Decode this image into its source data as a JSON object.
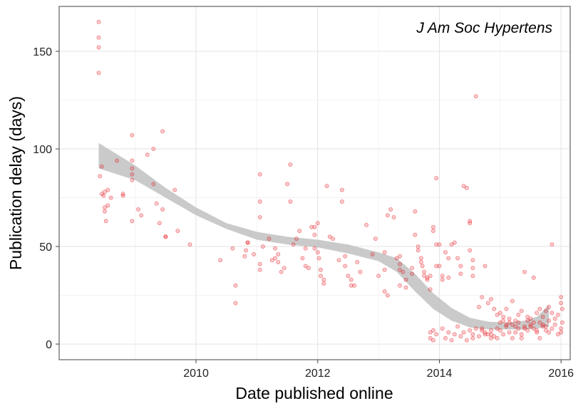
{
  "chart_data": {
    "type": "scatter",
    "title": "",
    "annotation": "J Am Soc Hypertens",
    "xlabel": "Date published online",
    "ylabel": "Publication delay (days)",
    "xlim": [
      2007.75,
      2016.15
    ],
    "ylim": [
      -8,
      173
    ],
    "x_ticks": [
      2010,
      2012,
      2014,
      2016
    ],
    "y_ticks": [
      0,
      50,
      100,
      150
    ],
    "grid": true,
    "point_color": "#e8141c",
    "band_color": "#bdbdbd",
    "smooth": {
      "x": [
        2008.4,
        2009.0,
        2009.5,
        2010.0,
        2010.5,
        2011.0,
        2011.5,
        2012.0,
        2012.5,
        2013.0,
        2013.3,
        2013.6,
        2013.9,
        2014.2,
        2014.5,
        2014.8,
        2015.1,
        2015.4,
        2015.6,
        2015.8
      ],
      "upper": [
        103,
        91.5,
        80,
        70,
        62,
        57.5,
        55,
        53.5,
        51,
        47,
        44,
        36,
        26,
        18.5,
        13.5,
        11.5,
        11,
        12,
        14,
        20
      ],
      "lower": [
        90,
        84,
        75,
        66,
        59,
        53.5,
        51,
        49.5,
        46.5,
        42.5,
        37,
        27,
        18,
        12,
        8.5,
        7.5,
        7.5,
        7.5,
        8,
        9
      ]
    },
    "points": [
      [
        2008.4,
        165
      ],
      [
        2008.4,
        157
      ],
      [
        2008.4,
        152
      ],
      [
        2008.4,
        139
      ],
      [
        2008.42,
        86
      ],
      [
        2008.45,
        91
      ],
      [
        2008.45,
        77
      ],
      [
        2008.48,
        76
      ],
      [
        2008.5,
        78
      ],
      [
        2008.5,
        70
      ],
      [
        2008.5,
        68
      ],
      [
        2008.52,
        63
      ],
      [
        2008.55,
        79
      ],
      [
        2008.55,
        71
      ],
      [
        2008.6,
        75
      ],
      [
        2008.7,
        94
      ],
      [
        2008.8,
        77
      ],
      [
        2008.8,
        76
      ],
      [
        2008.95,
        107
      ],
      [
        2008.95,
        94
      ],
      [
        2008.95,
        90
      ],
      [
        2008.95,
        87
      ],
      [
        2008.95,
        84
      ],
      [
        2008.95,
        63
      ],
      [
        2009.05,
        69
      ],
      [
        2009.1,
        66
      ],
      [
        2009.2,
        97
      ],
      [
        2009.3,
        82
      ],
      [
        2009.3,
        100
      ],
      [
        2009.35,
        72
      ],
      [
        2009.45,
        109
      ],
      [
        2009.45,
        69
      ],
      [
        2009.4,
        62
      ],
      [
        2009.5,
        55
      ],
      [
        2009.5,
        55
      ],
      [
        2009.65,
        79
      ],
      [
        2009.7,
        58
      ],
      [
        2009.9,
        51
      ],
      [
        2010.4,
        43
      ],
      [
        2010.6,
        49
      ],
      [
        2010.65,
        21
      ],
      [
        2010.65,
        30
      ],
      [
        2010.8,
        45
      ],
      [
        2010.82,
        48
      ],
      [
        2010.85,
        52
      ],
      [
        2010.85,
        52
      ],
      [
        2010.95,
        46
      ],
      [
        2011.05,
        87
      ],
      [
        2011.05,
        73
      ],
      [
        2011.05,
        65
      ],
      [
        2011.05,
        41
      ],
      [
        2011.05,
        38
      ],
      [
        2011.1,
        50
      ],
      [
        2011.2,
        54
      ],
      [
        2011.25,
        43
      ],
      [
        2011.3,
        44
      ],
      [
        2011.3,
        49
      ],
      [
        2011.35,
        46
      ],
      [
        2011.35,
        42
      ],
      [
        2011.4,
        37
      ],
      [
        2011.45,
        39
      ],
      [
        2011.5,
        82
      ],
      [
        2011.55,
        92
      ],
      [
        2011.55,
        73
      ],
      [
        2011.6,
        51
      ],
      [
        2011.65,
        54
      ],
      [
        2011.7,
        58
      ],
      [
        2011.75,
        44
      ],
      [
        2011.8,
        49
      ],
      [
        2011.8,
        40
      ],
      [
        2011.85,
        39
      ],
      [
        2011.9,
        60
      ],
      [
        2011.95,
        60
      ],
      [
        2011.95,
        56
      ],
      [
        2011.95,
        49
      ],
      [
        2012.0,
        62
      ],
      [
        2012.0,
        47
      ],
      [
        2012.02,
        44
      ],
      [
        2012.05,
        38
      ],
      [
        2012.05,
        35
      ],
      [
        2012.1,
        33
      ],
      [
        2012.1,
        31
      ],
      [
        2012.15,
        81
      ],
      [
        2012.2,
        55
      ],
      [
        2012.25,
        54
      ],
      [
        2012.35,
        43
      ],
      [
        2012.4,
        79
      ],
      [
        2012.4,
        73
      ],
      [
        2012.45,
        45
      ],
      [
        2012.45,
        40
      ],
      [
        2012.5,
        35
      ],
      [
        2012.55,
        33
      ],
      [
        2012.55,
        30
      ],
      [
        2012.6,
        30
      ],
      [
        2012.65,
        42
      ],
      [
        2012.7,
        37
      ],
      [
        2012.8,
        61
      ],
      [
        2012.9,
        46
      ],
      [
        2012.95,
        54
      ],
      [
        2013.0,
        35
      ],
      [
        2013.1,
        47
      ],
      [
        2013.1,
        38
      ],
      [
        2013.1,
        27
      ],
      [
        2013.15,
        25
      ],
      [
        2013.15,
        66
      ],
      [
        2013.2,
        69
      ],
      [
        2013.25,
        65
      ],
      [
        2013.3,
        44
      ],
      [
        2013.35,
        45
      ],
      [
        2013.35,
        41
      ],
      [
        2013.35,
        38
      ],
      [
        2013.35,
        30
      ],
      [
        2013.4,
        37
      ],
      [
        2013.45,
        33
      ],
      [
        2013.45,
        29
      ],
      [
        2013.55,
        39
      ],
      [
        2013.55,
        36
      ],
      [
        2013.6,
        68
      ],
      [
        2013.6,
        56
      ],
      [
        2013.65,
        50
      ],
      [
        2013.65,
        48
      ],
      [
        2013.7,
        44
      ],
      [
        2013.7,
        42
      ],
      [
        2013.72,
        40
      ],
      [
        2013.75,
        37
      ],
      [
        2013.75,
        35
      ],
      [
        2013.8,
        33
      ],
      [
        2013.8,
        34
      ],
      [
        2013.85,
        35
      ],
      [
        2013.85,
        28
      ],
      [
        2013.9,
        60
      ],
      [
        2013.9,
        58
      ],
      [
        2013.95,
        85
      ],
      [
        2013.95,
        51
      ],
      [
        2013.95,
        40
      ],
      [
        2014.0,
        51
      ],
      [
        2014.0,
        40
      ],
      [
        2014.05,
        35
      ],
      [
        2014.05,
        33
      ],
      [
        2014.1,
        47
      ],
      [
        2014.15,
        44
      ],
      [
        2014.15,
        34
      ],
      [
        2014.2,
        51
      ],
      [
        2014.25,
        52
      ],
      [
        2014.3,
        44
      ],
      [
        2014.35,
        40
      ],
      [
        2014.35,
        36
      ],
      [
        2014.4,
        81
      ],
      [
        2014.45,
        80
      ],
      [
        2014.5,
        62
      ],
      [
        2014.5,
        63
      ],
      [
        2014.5,
        48
      ],
      [
        2014.55,
        43
      ],
      [
        2014.55,
        35
      ],
      [
        2014.6,
        127
      ],
      [
        2014.65,
        19
      ],
      [
        2014.7,
        8
      ],
      [
        2014.75,
        5
      ],
      [
        2014.8,
        21
      ],
      [
        2014.85,
        3
      ],
      [
        2014.85,
        7
      ],
      [
        2013.85,
        6
      ],
      [
        2013.85,
        3
      ],
      [
        2013.9,
        7
      ],
      [
        2013.9,
        2
      ],
      [
        2013.95,
        5
      ],
      [
        2014.05,
        8
      ],
      [
        2014.1,
        3
      ],
      [
        2014.15,
        6
      ],
      [
        2014.2,
        2
      ],
      [
        2014.25,
        5
      ],
      [
        2014.3,
        9
      ],
      [
        2014.35,
        4
      ],
      [
        2014.4,
        6
      ],
      [
        2014.45,
        2
      ],
      [
        2014.5,
        7
      ],
      [
        2014.55,
        5
      ],
      [
        2014.55,
        3
      ],
      [
        2014.6,
        8
      ],
      [
        2014.65,
        4
      ],
      [
        2014.7,
        7
      ],
      [
        2014.75,
        6
      ],
      [
        2014.8,
        5
      ],
      [
        2014.85,
        5
      ],
      [
        2014.9,
        4
      ],
      [
        2014.95,
        8
      ],
      [
        2015.0,
        7
      ],
      [
        2015.05,
        5
      ],
      [
        2015.1,
        9
      ],
      [
        2015.15,
        6
      ],
      [
        2015.2,
        10
      ],
      [
        2015.25,
        6
      ],
      [
        2015.3,
        8
      ],
      [
        2015.35,
        5
      ],
      [
        2015.4,
        9
      ],
      [
        2015.45,
        7
      ],
      [
        2015.5,
        10
      ],
      [
        2015.55,
        8
      ],
      [
        2015.6,
        6
      ],
      [
        2015.65,
        11
      ],
      [
        2015.7,
        9
      ],
      [
        2015.75,
        7
      ],
      [
        2015.8,
        12
      ],
      [
        2014.55,
        39
      ],
      [
        2014.7,
        24
      ],
      [
        2014.75,
        40
      ],
      [
        2014.85,
        23
      ],
      [
        2014.9,
        18
      ],
      [
        2014.95,
        15
      ],
      [
        2015.0,
        16
      ],
      [
        2015.05,
        14
      ],
      [
        2015.1,
        18
      ],
      [
        2015.15,
        13
      ],
      [
        2015.2,
        22
      ],
      [
        2015.25,
        12
      ],
      [
        2015.3,
        15
      ],
      [
        2015.35,
        17
      ],
      [
        2015.4,
        37
      ],
      [
        2015.45,
        14
      ],
      [
        2015.5,
        13
      ],
      [
        2015.55,
        34
      ],
      [
        2015.6,
        16
      ],
      [
        2015.65,
        18
      ],
      [
        2015.7,
        14
      ],
      [
        2015.75,
        17
      ],
      [
        2015.8,
        19
      ],
      [
        2015.85,
        51
      ],
      [
        2015.85,
        16
      ],
      [
        2015.9,
        13
      ],
      [
        2015.95,
        15
      ],
      [
        2016.0,
        24
      ],
      [
        2016.0,
        21
      ],
      [
        2016.02,
        18
      ],
      [
        2016.02,
        11
      ],
      [
        2014.95,
        3
      ],
      [
        2015.0,
        11
      ],
      [
        2015.05,
        12
      ],
      [
        2015.1,
        10
      ],
      [
        2015.15,
        11
      ],
      [
        2015.2,
        3
      ],
      [
        2015.25,
        9
      ],
      [
        2015.3,
        11
      ],
      [
        2015.35,
        3
      ],
      [
        2015.4,
        8
      ],
      [
        2015.45,
        12
      ],
      [
        2015.5,
        9
      ],
      [
        2015.55,
        11
      ],
      [
        2015.6,
        7
      ],
      [
        2015.65,
        3
      ],
      [
        2015.7,
        10
      ],
      [
        2015.75,
        9
      ],
      [
        2015.8,
        6
      ],
      [
        2015.85,
        8
      ],
      [
        2015.9,
        10
      ],
      [
        2015.95,
        5
      ],
      [
        2016.0,
        6
      ],
      [
        2016.0,
        8
      ]
    ]
  }
}
